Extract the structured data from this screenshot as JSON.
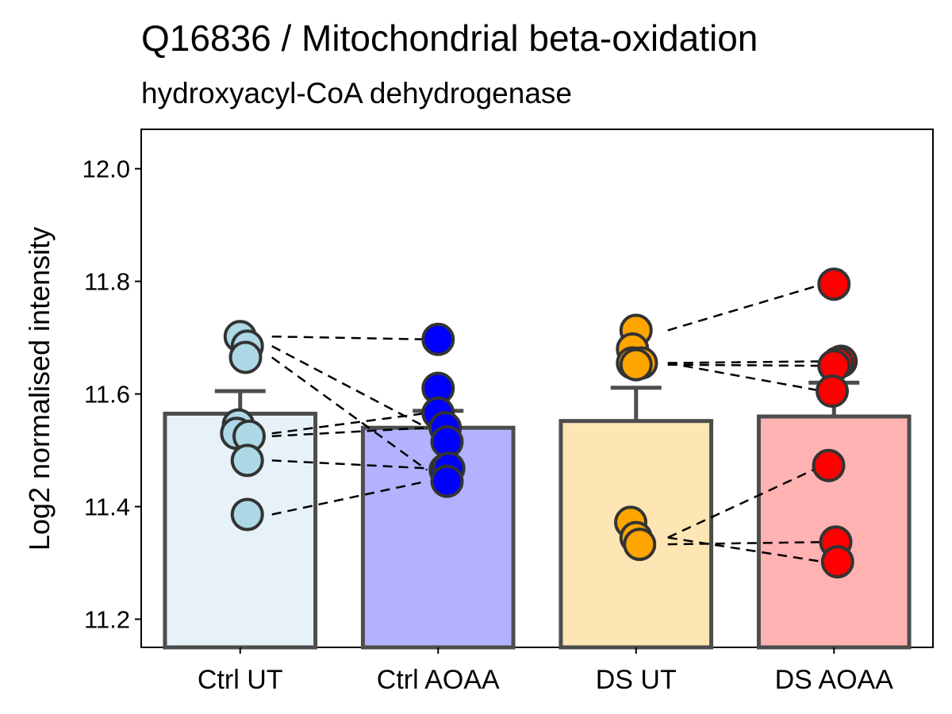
{
  "chart_data": {
    "type": "bar",
    "title": "Q16836 / Mitochondrial beta-oxidation",
    "subtitle": "hydroxyacyl-CoA dehydrogenase",
    "xlabel": "",
    "ylabel": "Log2 normalised intensity",
    "ylim": [
      11.15,
      12.07
    ],
    "yticks": [
      11.2,
      11.4,
      11.6,
      11.8,
      12.0
    ],
    "ytick_labels": [
      "11.2",
      "11.4",
      "11.6",
      "11.8",
      "12.0"
    ],
    "grid": false,
    "categories": [
      "Ctrl UT",
      "Ctrl AOAA",
      "DS UT",
      "DS AOAA"
    ],
    "values": [
      11.565,
      11.54,
      11.552,
      11.56
    ],
    "error_upper": [
      11.605,
      11.57,
      11.611,
      11.62
    ],
    "bar_fill_colors": [
      "#e6f2f8",
      "#b2b2ff",
      "#fde5b4",
      "#ffb2b2"
    ],
    "point_colors": [
      "#add8e6",
      "#0000ff",
      "#ffa500",
      "#ff0000"
    ],
    "outline_color": "#4d4d4d",
    "points": [
      [
        {
          "x": 0.0,
          "y": 11.702
        },
        {
          "x": 0.2,
          "y": 11.685
        },
        {
          "x": 0.15,
          "y": 11.665
        },
        {
          "x": -0.05,
          "y": 11.545
        },
        {
          "x": -0.1,
          "y": 11.53
        },
        {
          "x": 0.25,
          "y": 11.525
        },
        {
          "x": 0.2,
          "y": 11.482
        },
        {
          "x": 0.2,
          "y": 11.386
        }
      ],
      [
        {
          "x": 0.0,
          "y": 11.697
        },
        {
          "x": 0.0,
          "y": 11.61
        },
        {
          "x": 0.0,
          "y": 11.566
        },
        {
          "x": 0.2,
          "y": 11.54
        },
        {
          "x": 0.25,
          "y": 11.515
        },
        {
          "x": 0.2,
          "y": 11.465
        },
        {
          "x": 0.3,
          "y": 11.468
        },
        {
          "x": 0.25,
          "y": 11.445
        }
      ],
      [
        {
          "x": 0.0,
          "y": 11.713
        },
        {
          "x": -0.1,
          "y": 11.68
        },
        {
          "x": 0.15,
          "y": 11.655
        },
        {
          "x": -0.1,
          "y": 11.655
        },
        {
          "x": 0.0,
          "y": 11.652
        },
        {
          "x": -0.15,
          "y": 11.372
        },
        {
          "x": 0.0,
          "y": 11.345
        },
        {
          "x": 0.1,
          "y": 11.333
        }
      ],
      [
        {
          "x": 0.0,
          "y": 11.795
        },
        {
          "x": 0.2,
          "y": 11.658
        },
        {
          "x": 0.1,
          "y": 11.655
        },
        {
          "x": 0.0,
          "y": 11.65
        },
        {
          "x": -0.05,
          "y": 11.605
        },
        {
          "x": -0.15,
          "y": 11.473
        },
        {
          "x": 0.05,
          "y": 11.337
        },
        {
          "x": 0.1,
          "y": 11.302
        }
      ]
    ],
    "paired_lines": [
      {
        "from": [
          0,
          11.702
        ],
        "to": [
          1,
          11.697
        ]
      },
      {
        "from": [
          0,
          11.685
        ],
        "to": [
          1,
          11.54
        ]
      },
      {
        "from": [
          0,
          11.665
        ],
        "to": [
          1,
          11.465
        ]
      },
      {
        "from": [
          0,
          11.53
        ],
        "to": [
          1,
          11.566
        ]
      },
      {
        "from": [
          0,
          11.525
        ],
        "to": [
          1,
          11.54
        ]
      },
      {
        "from": [
          0,
          11.482
        ],
        "to": [
          1,
          11.468
        ]
      },
      {
        "from": [
          0,
          11.386
        ],
        "to": [
          1,
          11.445
        ]
      },
      {
        "from": [
          2,
          11.713
        ],
        "to": [
          3,
          11.795
        ]
      },
      {
        "from": [
          2,
          11.655
        ],
        "to": [
          3,
          11.658
        ]
      },
      {
        "from": [
          2,
          11.652
        ],
        "to": [
          3,
          11.65
        ]
      },
      {
        "from": [
          2,
          11.655
        ],
        "to": [
          3,
          11.605
        ]
      },
      {
        "from": [
          2,
          11.345
        ],
        "to": [
          3,
          11.473
        ]
      },
      {
        "from": [
          2,
          11.333
        ],
        "to": [
          3,
          11.337
        ]
      },
      {
        "from": [
          2,
          11.345
        ],
        "to": [
          3,
          11.302
        ]
      }
    ]
  }
}
